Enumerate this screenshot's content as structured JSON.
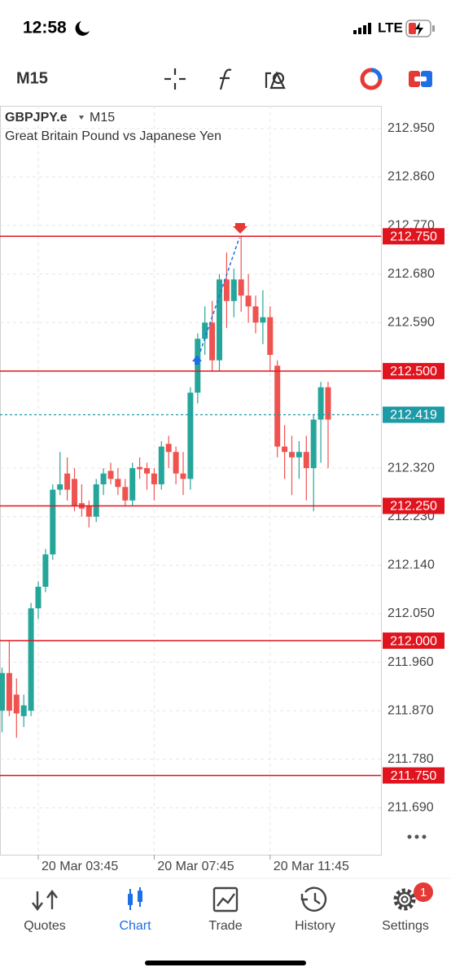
{
  "status_bar": {
    "time": "12:58",
    "network": "LTE"
  },
  "toolbar": {
    "timeframe": "M15"
  },
  "chart_data": {
    "type": "candlestick",
    "symbol": "GBPJPY.e",
    "timeframe": "M15",
    "description": "Great Britain Pound vs Japanese Yen",
    "categories": [
      null,
      null,
      null,
      null,
      null,
      "20 Mar 03:45",
      null,
      null,
      null,
      null,
      null,
      null,
      null,
      null,
      null,
      null,
      null,
      null,
      null,
      null,
      null,
      "20 Mar 07:45",
      null,
      null,
      null,
      null,
      null,
      null,
      null,
      null,
      null,
      null,
      null,
      null,
      null,
      null,
      null,
      "20 Mar 11:45",
      null,
      null,
      null,
      null,
      null,
      null,
      null,
      null
    ],
    "open": [
      211.87,
      211.94,
      211.9,
      211.86,
      211.87,
      212.06,
      212.1,
      212.16,
      212.28,
      212.31,
      212.3,
      212.255,
      212.25,
      212.23,
      212.29,
      212.315,
      212.3,
      212.285,
      212.26,
      212.322,
      212.32,
      212.31,
      212.29,
      212.365,
      212.35,
      212.31,
      212.3,
      212.46,
      212.56,
      212.59,
      212.52,
      212.67,
      212.63,
      212.67,
      212.64,
      212.62,
      212.59,
      212.6,
      212.51,
      212.36,
      212.35,
      212.34,
      212.35,
      212.32,
      212.41,
      212.47
    ],
    "high": [
      211.95,
      212.0,
      211.93,
      211.9,
      212.07,
      212.11,
      212.17,
      212.29,
      212.35,
      212.34,
      212.32,
      212.29,
      212.26,
      212.3,
      212.32,
      212.33,
      212.32,
      212.3,
      212.33,
      212.34,
      212.33,
      212.32,
      212.37,
      212.38,
      212.36,
      212.35,
      212.47,
      212.57,
      212.62,
      212.63,
      212.68,
      212.72,
      212.69,
      212.75,
      212.68,
      212.64,
      212.65,
      212.62,
      212.52,
      212.4,
      212.38,
      212.37,
      212.38,
      212.42,
      212.48,
      212.48
    ],
    "low": [
      211.83,
      211.86,
      211.82,
      211.84,
      211.86,
      212.04,
      212.09,
      212.15,
      212.27,
      212.26,
      212.24,
      212.23,
      212.21,
      212.22,
      212.27,
      212.29,
      212.27,
      212.25,
      212.25,
      212.3,
      212.28,
      212.26,
      212.28,
      212.32,
      212.29,
      212.27,
      212.28,
      212.44,
      212.53,
      212.5,
      212.5,
      212.58,
      212.6,
      212.61,
      212.59,
      212.57,
      212.55,
      212.5,
      212.34,
      212.3,
      212.27,
      212.3,
      212.26,
      212.24,
      212.33,
      212.32
    ],
    "close": [
      211.94,
      211.87,
      211.865,
      211.88,
      212.06,
      212.1,
      212.16,
      212.28,
      212.29,
      212.28,
      212.25,
      212.245,
      212.23,
      212.29,
      212.31,
      212.3,
      212.285,
      212.26,
      212.32,
      212.318,
      212.31,
      212.29,
      212.36,
      212.35,
      212.31,
      212.3,
      212.46,
      212.56,
      212.59,
      212.52,
      212.67,
      212.63,
      212.67,
      212.64,
      212.62,
      212.59,
      212.6,
      212.53,
      212.36,
      212.35,
      212.34,
      212.35,
      212.32,
      212.41,
      212.47,
      212.41
    ],
    "up_color": "#26a69a",
    "down_color": "#ef5350",
    "ylim": [
      211.603,
      212.992
    ],
    "yticks": [
      {
        "value": 212.95,
        "label": "212.950"
      },
      {
        "value": 212.86,
        "label": "212.860"
      },
      {
        "value": 212.77,
        "label": "212.770"
      },
      {
        "value": 212.68,
        "label": "212.680"
      },
      {
        "value": 212.59,
        "label": "212.590"
      },
      {
        "value": 212.32,
        "label": "212.320"
      },
      {
        "value": 212.23,
        "label": "212.230"
      },
      {
        "value": 212.14,
        "label": "212.140"
      },
      {
        "value": 212.05,
        "label": "212.050"
      },
      {
        "value": 211.96,
        "label": "211.960"
      },
      {
        "value": 211.87,
        "label": "211.870"
      },
      {
        "value": 211.78,
        "label": "211.780"
      },
      {
        "value": 211.69,
        "label": "211.690"
      }
    ],
    "grid": true,
    "levels": [
      {
        "value": 212.75,
        "label": "212.750"
      },
      {
        "value": 212.5,
        "label": "212.500"
      },
      {
        "value": 212.25,
        "label": "212.250"
      },
      {
        "value": 212.0,
        "label": "212.000"
      },
      {
        "value": 211.75,
        "label": "211.750"
      }
    ],
    "level_color": "#e0141e",
    "current_price": 212.419,
    "current_price_color": "#1c9aa5"
  },
  "nav": {
    "items": [
      "Quotes",
      "Chart",
      "Trade",
      "History",
      "Settings"
    ],
    "active": "Chart",
    "badge": "1"
  }
}
